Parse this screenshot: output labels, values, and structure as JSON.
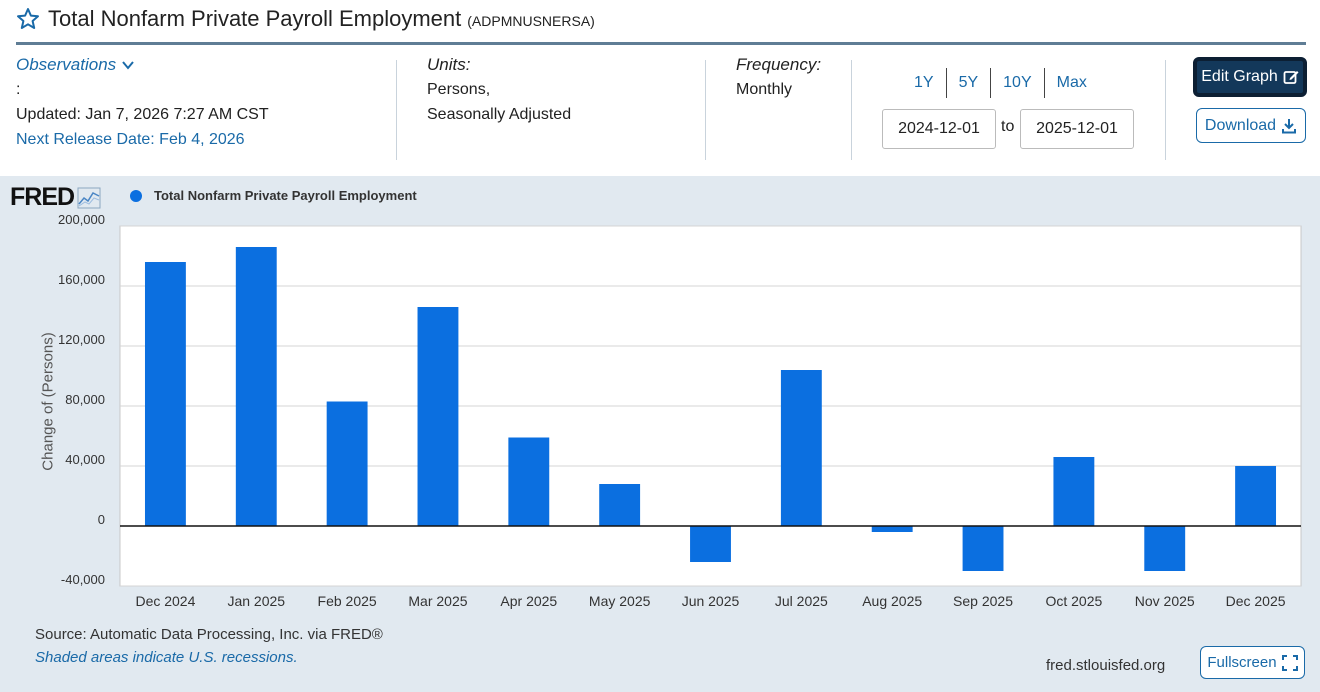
{
  "header": {
    "title": "Total Nonfarm Private Payroll Employment",
    "series_id": "(ADPMNUSNERSA)"
  },
  "meta": {
    "observations_label": "Observations",
    "observations_colon": ":",
    "updated": "Updated: Jan 7, 2026 7:27 AM CST",
    "next_release": "Next Release Date: Feb 4, 2026",
    "units_label": "Units:",
    "units_line1": "Persons,",
    "units_line2": "Seasonally Adjusted",
    "frequency_label": "Frequency:",
    "frequency_value": "Monthly"
  },
  "range": {
    "buttons": [
      "1Y",
      "5Y",
      "10Y",
      "Max"
    ],
    "start": "2024-12-01",
    "to_label": "to",
    "end": "2025-12-01"
  },
  "actions": {
    "edit_label": "Edit Graph",
    "download_label": "Download",
    "fullscreen_label": "Fullscreen"
  },
  "footer": {
    "source": "Source: Automatic Data Processing, Inc. via FRED®",
    "shaded": "Shaded areas indicate U.S. recessions.",
    "url": "fred.stlouisfed.org"
  },
  "logo_text": "FRED",
  "colors": {
    "bar": "#0b6fe0",
    "link": "#1a6aa8",
    "panel": "#e1e9f0",
    "edit_bg": "#13385a"
  },
  "chart_data": {
    "type": "bar",
    "title": "",
    "legend": [
      "Total Nonfarm Private Payroll Employment"
    ],
    "ylabel": "Change of (Persons)",
    "xlabel": "",
    "categories": [
      "Dec 2024",
      "Jan 2025",
      "Feb 2025",
      "Mar 2025",
      "Apr 2025",
      "May 2025",
      "Jun 2025",
      "Jul 2025",
      "Aug 2025",
      "Sep 2025",
      "Oct 2025",
      "Nov 2025",
      "Dec 2025"
    ],
    "values": [
      176000,
      186000,
      83000,
      146000,
      59000,
      28000,
      -24000,
      104000,
      -4000,
      -30000,
      46000,
      -30000,
      40000
    ],
    "yticks": [
      200000,
      160000,
      120000,
      80000,
      40000,
      0,
      -40000
    ],
    "ytick_labels": [
      "200,000",
      "160,000",
      "120,000",
      "80,000",
      "40,000",
      "0",
      "-40,000"
    ],
    "ylim": [
      -40000,
      200000
    ],
    "grid": true
  }
}
